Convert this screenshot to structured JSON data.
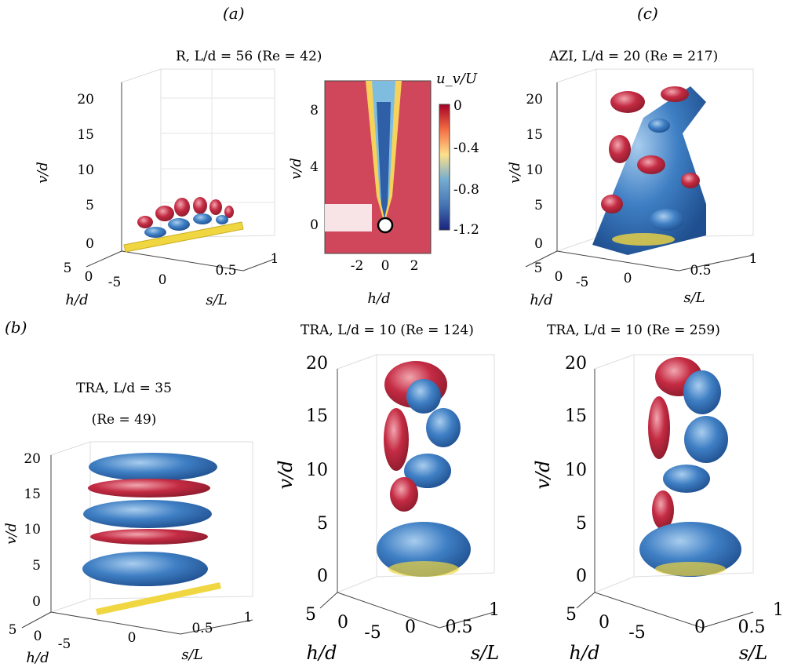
{
  "panel_labels": {
    "a": "(a)",
    "b": "(b)",
    "c": "(c)"
  },
  "colors": {
    "red": "#c0283e",
    "blue": "#2f6db3",
    "lightblue": "#6fa6dc",
    "yellow": "#f0d640",
    "grid": "#dddddd",
    "axis": "#444444"
  },
  "plots": {
    "a3d": {
      "title": "R, L/d = 56 (Re = 42)",
      "ylabel": "v/d",
      "xlabel": "s/L",
      "zlabel": "h/d",
      "yticks": [
        "20",
        "15",
        "10",
        "5",
        "0"
      ],
      "sticks": [
        "0",
        "0.5",
        "1"
      ],
      "hticks": [
        "5",
        "0",
        "-5"
      ]
    },
    "acontour": {
      "ylabel": "v/d",
      "xlabel": "h/d",
      "yticks": [
        "8",
        "4",
        "0"
      ],
      "xticks": [
        "-2",
        "0",
        "2"
      ],
      "colorbar_label": "u_v/U",
      "colorbar_ticks": [
        "0",
        "-0.4",
        "-0.8",
        "-1.2"
      ]
    },
    "c3d": {
      "title": "AZI, L/d = 20 (Re = 217)",
      "ylabel": "v/d",
      "xlabel": "s/L",
      "zlabel": "h/d",
      "yticks": [
        "20",
        "15",
        "10",
        "5",
        "0"
      ],
      "sticks": [
        "0",
        "0.5",
        "1"
      ],
      "hticks": [
        "5",
        "0",
        "-5"
      ]
    },
    "b1": {
      "title_line1": "TRA, L/d = 35",
      "title_line2": "(Re = 49)",
      "ylabel": "v/d",
      "xlabel": "s/L",
      "zlabel": "h/d",
      "yticks": [
        "20",
        "15",
        "10",
        "5",
        "0"
      ],
      "sticks": [
        "0",
        "0.5",
        "1"
      ],
      "hticks": [
        "5",
        "0",
        "-5"
      ]
    },
    "b2": {
      "title": "TRA, L/d = 10 (Re = 124)",
      "ylabel": "v/d",
      "xlabel": "s/L",
      "zlabel": "h/d",
      "yticks": [
        "20",
        "15",
        "10",
        "5",
        "0"
      ],
      "sticks": [
        "0",
        "0.5",
        "1"
      ],
      "hticks": [
        "5",
        "0",
        "-5"
      ]
    },
    "b3": {
      "title": "TRA, L/d = 10 (Re = 259)",
      "ylabel": "v/d",
      "xlabel": "s/L",
      "zlabel": "h/d",
      "yticks": [
        "20",
        "15",
        "10",
        "5",
        "0"
      ],
      "sticks": [
        "0",
        "0.5",
        "1"
      ],
      "hticks": [
        "5",
        "0",
        "-5"
      ]
    }
  }
}
